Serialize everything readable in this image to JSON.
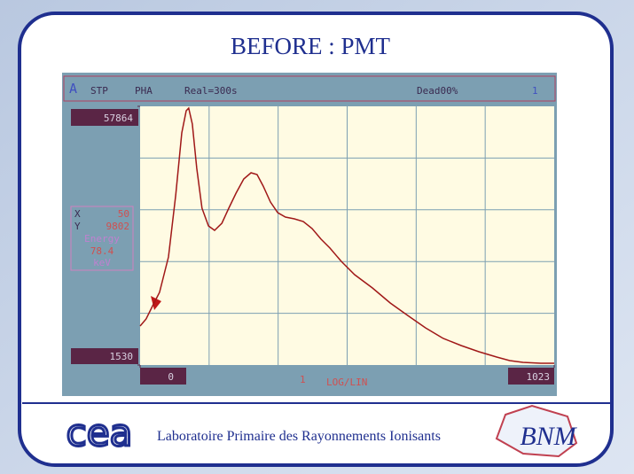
{
  "header": {
    "title": "BEFORE : PMT"
  },
  "screen": {
    "mode": "A",
    "status": "STP",
    "analysis": "PHA",
    "real": "Real=300s",
    "dead": "Dead00%",
    "marker": "1",
    "cursor": [
      "X",
      "50",
      "Y",
      "9802",
      "Energy",
      "78.4",
      "keV"
    ],
    "center": "1",
    "scale": "LOG/LIN"
  },
  "chart_data": {
    "type": "line",
    "color": "#a01818",
    "x": [
      0,
      15,
      31,
      48,
      70,
      88,
      103,
      114,
      120,
      129,
      140,
      153,
      169,
      184,
      202,
      219,
      237,
      256,
      274,
      289,
      304,
      322,
      340,
      359,
      381,
      403,
      425,
      447,
      469,
      497,
      530,
      574,
      618,
      661,
      705,
      749,
      793,
      837,
      881,
      913,
      946,
      990,
      1023
    ],
    "values": [
      10019,
      11562,
      14456,
      17350,
      25067,
      38573,
      52078,
      56901,
      57480,
      54007,
      44360,
      35679,
      31820,
      30855,
      32399,
      35679,
      38958,
      42045,
      43396,
      43010,
      40502,
      37029,
      34714,
      33749,
      33363,
      32785,
      31241,
      28926,
      26997,
      24103,
      21209,
      18315,
      15035,
      12334,
      9633,
      7318,
      5774,
      4424,
      3266,
      2495,
      2109,
      1916,
      1916
    ],
    "xlim": [
      0,
      1023
    ],
    "xticks": [
      0,
      1023
    ],
    "ylim": [
      1530,
      57864
    ],
    "yticks": [
      1530,
      57864
    ],
    "grid": true
  },
  "footer": {
    "logo_left": "cea",
    "caption": "Laboratoire Primaire des Rayonnements Ionisants",
    "logo_right": "BNM"
  }
}
